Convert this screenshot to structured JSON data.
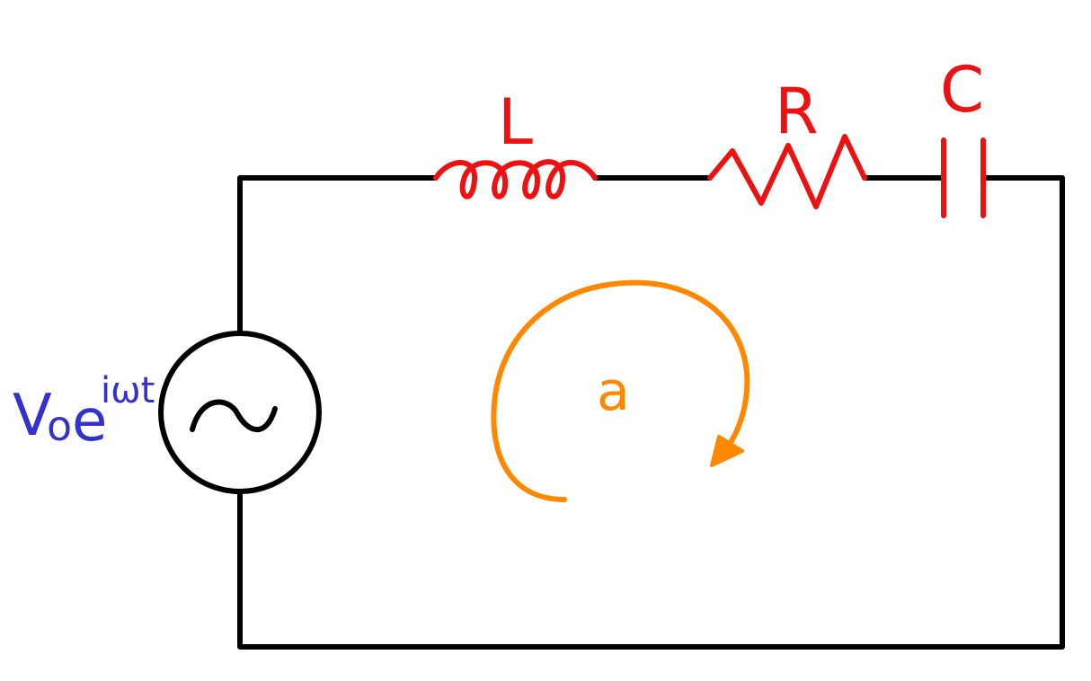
{
  "diagram": {
    "type": "series RLC circuit",
    "components": {
      "inductor_label": "L",
      "resistor_label": "R",
      "capacitor_label": "C"
    },
    "source": {
      "label_base": "V",
      "label_sub": "o",
      "label_e": "e",
      "label_exp": "iωt"
    },
    "loop_label": "a"
  },
  "colors": {
    "wire": "#000000",
    "components": "#ee1111",
    "source_label": "#3333cc",
    "loop_current": "#ff8800",
    "background": "#ffffff"
  },
  "icons": {
    "source_symbol": "ac-sine-icon",
    "loop_arrow": "clockwise-arrow-icon"
  }
}
